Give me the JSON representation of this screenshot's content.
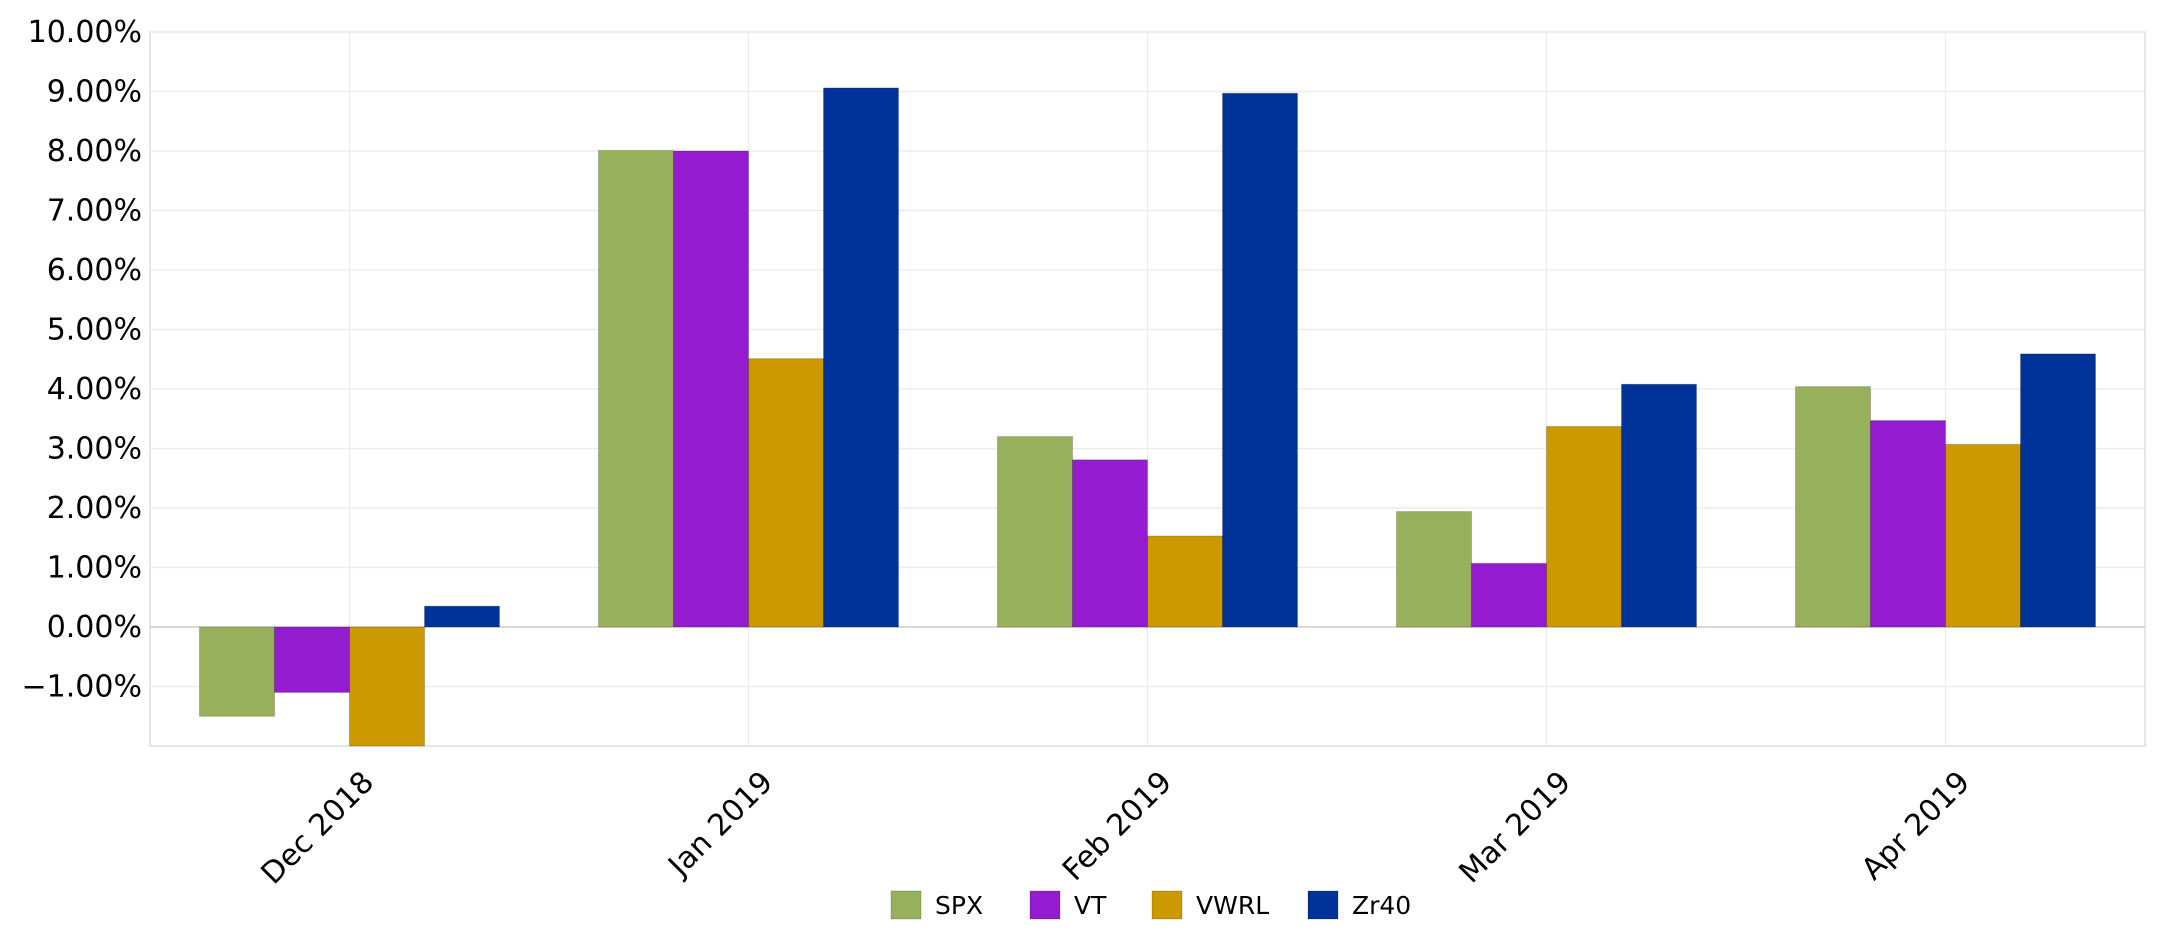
{
  "chart_data": {
    "type": "bar",
    "categories": [
      "Dec 2018",
      "Jan 2019",
      "Feb 2019",
      "Mar 2019",
      "Apr 2019"
    ],
    "series": [
      {
        "name": "SPX",
        "color": "#97b05c",
        "values": [
          -1.5,
          8.01,
          3.2,
          1.94,
          4.04
        ]
      },
      {
        "name": "VT",
        "color": "#951bd1",
        "values": [
          -1.1,
          8.0,
          2.81,
          1.07,
          3.47
        ]
      },
      {
        "name": "VWRL",
        "color": "#cc9900",
        "values": [
          -2.0,
          4.51,
          1.53,
          3.37,
          3.07
        ]
      },
      {
        "name": "Zr40",
        "color": "#003399",
        "values": [
          0.35,
          9.06,
          8.97,
          4.08,
          4.59
        ]
      }
    ],
    "yticks": [
      "−1.00%",
      "0.00%",
      "1.00%",
      "2.00%",
      "3.00%",
      "4.00%",
      "5.00%",
      "6.00%",
      "7.00%",
      "8.00%",
      "9.00%",
      "10.00%"
    ],
    "ylim": [
      -2,
      10
    ],
    "grid": true,
    "legend_position": "bottom-center",
    "title": "",
    "xlabel": "",
    "ylabel": ""
  }
}
